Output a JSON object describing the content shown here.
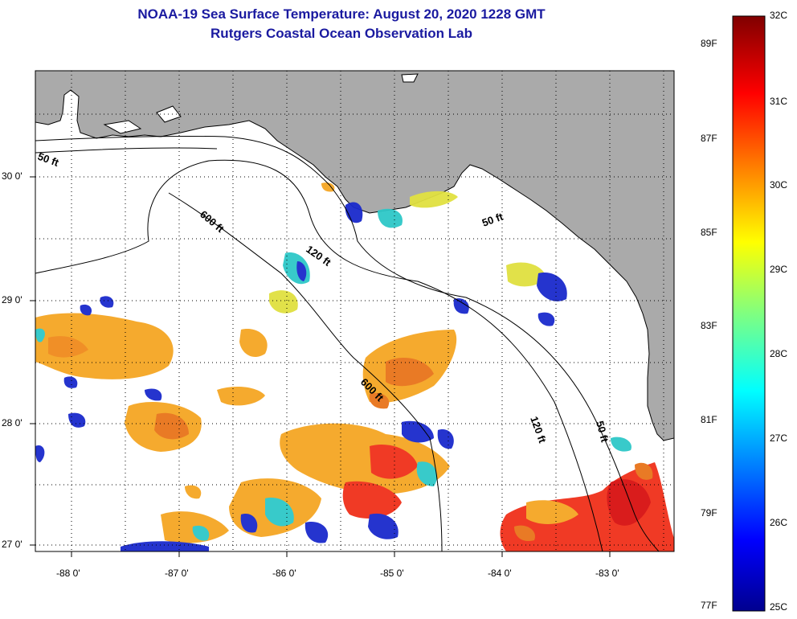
{
  "title": "NOAA-19 Sea Surface Temperature:  August 20, 2020 1228 GMT",
  "subtitle": "Rutgers Coastal Ocean Observation Lab",
  "map": {
    "lon_labels": [
      "-88 0'",
      "-87 0'",
      "-86 0'",
      "-85 0'",
      "-84 0'",
      "-83 0'"
    ],
    "lat_labels": [
      "30 0'",
      "29 0'",
      "28 0'",
      "27 0'"
    ],
    "contour_labels": [
      "50 ft",
      "600 ft",
      "120 ft",
      "50 ft",
      "600 ft",
      "120 ft",
      "50 ft"
    ]
  },
  "colorbar": {
    "fahrenheit": [
      "89F",
      "87F",
      "85F",
      "83F",
      "81F",
      "79F",
      "77F"
    ],
    "celsius": [
      "32C",
      "31C",
      "30C",
      "29C",
      "28C",
      "27C",
      "26C",
      "25C"
    ]
  },
  "colors": {
    "title": "#1a1aa0",
    "land": "#aaaaaa",
    "ocean": "#ffffff"
  }
}
